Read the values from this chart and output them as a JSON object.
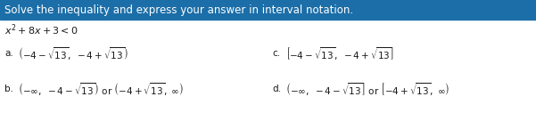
{
  "header_text": "Solve the inequality and express your answer in interval notation.",
  "header_bg": "#1b6ea8",
  "header_text_color": "#ffffff",
  "bg_color": "#ffffff",
  "question": "$x^2+8x+3<0$",
  "options": {
    "a": "$\\left(-4-\\sqrt{13},\\ -4+\\sqrt{13}\\right)$",
    "b": "$\\left(-\\infty,\\ -4-\\sqrt{13}\\right)$ or $\\left(-4+\\sqrt{13},\\ \\infty\\right)$",
    "c": "$\\left[-4-\\sqrt{13},\\ -4+\\sqrt{13}\\right]$",
    "d": "$\\left(-\\infty,\\ -4-\\sqrt{13}\\right]$ or $\\left[-4+\\sqrt{13},\\ \\infty\\right)$"
  },
  "label_color": "#1a1a1a",
  "option_color": "#1a1a1a",
  "font_size_header": 8.5,
  "font_size_question": 8.0,
  "font_size_options": 7.5
}
